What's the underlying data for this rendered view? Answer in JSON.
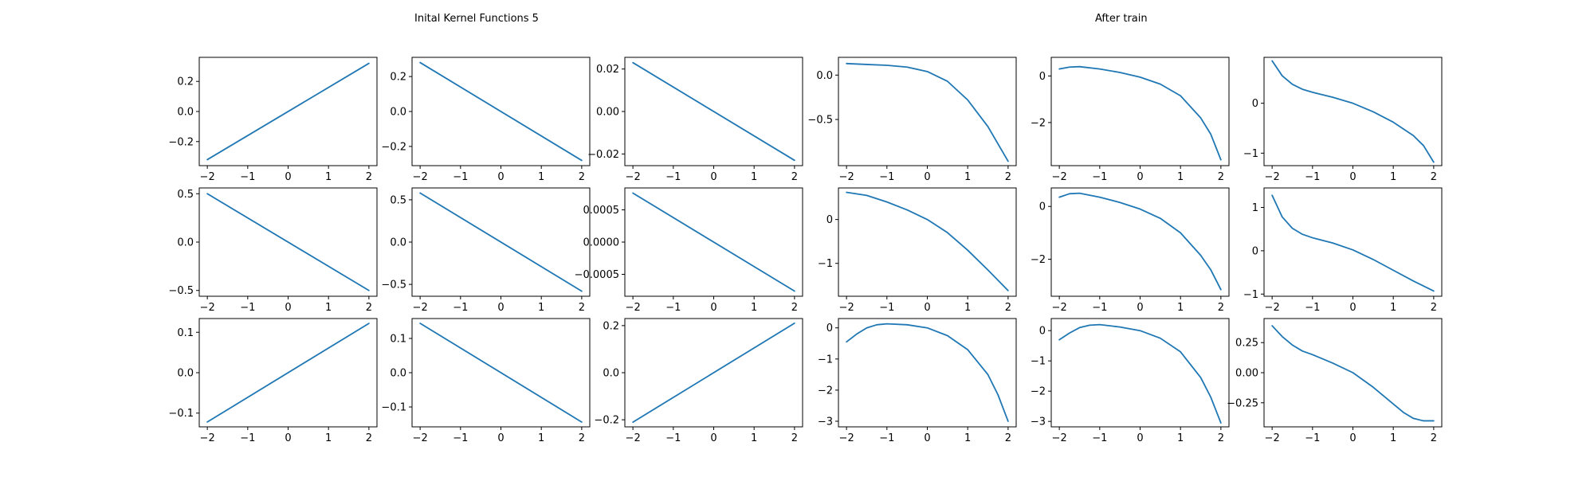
{
  "titles": {
    "left": "Inital Kernel Functions 5",
    "right": "After train"
  },
  "style": {
    "line_color": "#1f77b4",
    "axes_color": "#000000",
    "background": "#ffffff"
  },
  "chart_data": [
    {
      "type": "line",
      "row": 0,
      "col": 0,
      "xlim": [
        -2.2,
        2.2
      ],
      "ylim": [
        -0.36,
        0.36
      ],
      "xticks": [
        -2,
        -1,
        0,
        1,
        2
      ],
      "xtick_labels": [
        "−2",
        "−1",
        "0",
        "1",
        "2"
      ],
      "yticks": [
        -0.2,
        0,
        0.2
      ],
      "ytick_labels": [
        "−0.2",
        "0.0",
        "0.2"
      ],
      "x": [
        -2,
        2
      ],
      "y": [
        -0.32,
        0.32
      ]
    },
    {
      "type": "line",
      "row": 0,
      "col": 1,
      "xlim": [
        -2.2,
        2.2
      ],
      "ylim": [
        -0.31,
        0.31
      ],
      "xticks": [
        -2,
        -1,
        0,
        1,
        2
      ],
      "xtick_labels": [
        "−2",
        "−1",
        "0",
        "1",
        "2"
      ],
      "yticks": [
        -0.2,
        0,
        0.2
      ],
      "ytick_labels": [
        "−0.2",
        "0.0",
        "0.2"
      ],
      "x": [
        -2,
        2
      ],
      "y": [
        0.28,
        -0.28
      ]
    },
    {
      "type": "line",
      "row": 0,
      "col": 2,
      "xlim": [
        -2.2,
        2.2
      ],
      "ylim": [
        -0.0255,
        0.0255
      ],
      "xticks": [
        -2,
        -1,
        0,
        1,
        2
      ],
      "xtick_labels": [
        "−2",
        "−1",
        "0",
        "1",
        "2"
      ],
      "yticks": [
        -0.02,
        0,
        0.02
      ],
      "ytick_labels": [
        "−0.02",
        "0.00",
        "0.02"
      ],
      "x": [
        -2,
        2
      ],
      "y": [
        0.023,
        -0.023
      ]
    },
    {
      "type": "line",
      "row": 0,
      "col": 3,
      "xlim": [
        -2.2,
        2.2
      ],
      "ylim": [
        -1.02,
        0.2
      ],
      "xticks": [
        -2,
        -1,
        0,
        1,
        2
      ],
      "xtick_labels": [
        "−2",
        "−1",
        "0",
        "1",
        "2"
      ],
      "yticks": [
        -0.5,
        0
      ],
      "ytick_labels": [
        "−0.5",
        "0.0"
      ],
      "x": [
        -2,
        -1.5,
        -1,
        -0.5,
        0,
        0.5,
        1,
        1.5,
        2
      ],
      "y": [
        0.13,
        0.12,
        0.11,
        0.09,
        0.04,
        -0.07,
        -0.28,
        -0.58,
        -0.97
      ]
    },
    {
      "type": "line",
      "row": 0,
      "col": 4,
      "xlim": [
        -2.2,
        2.2
      ],
      "ylim": [
        -3.85,
        0.8
      ],
      "xticks": [
        -2,
        -1,
        0,
        1,
        2
      ],
      "xtick_labels": [
        "−2",
        "−1",
        "0",
        "1",
        "2"
      ],
      "yticks": [
        -2,
        0
      ],
      "ytick_labels": [
        "−2",
        "0"
      ],
      "x": [
        -2,
        -1.75,
        -1.5,
        -1,
        -0.5,
        0,
        0.5,
        1,
        1.5,
        1.75,
        2
      ],
      "y": [
        0.3,
        0.38,
        0.4,
        0.3,
        0.15,
        -0.05,
        -0.35,
        -0.85,
        -1.8,
        -2.5,
        -3.6
      ]
    },
    {
      "type": "line",
      "row": 0,
      "col": 5,
      "xlim": [
        -2.2,
        2.2
      ],
      "ylim": [
        -1.25,
        0.92
      ],
      "xticks": [
        -2,
        -1,
        0,
        1,
        2
      ],
      "xtick_labels": [
        "−2",
        "−1",
        "0",
        "1",
        "2"
      ],
      "yticks": [
        -1,
        0
      ],
      "ytick_labels": [
        "−1",
        "0"
      ],
      "x": [
        -2,
        -1.75,
        -1.5,
        -1.25,
        -1,
        -0.5,
        0,
        0.5,
        1,
        1.5,
        1.75,
        2
      ],
      "y": [
        0.85,
        0.55,
        0.38,
        0.28,
        0.22,
        0.12,
        0,
        -0.17,
        -0.38,
        -0.65,
        -0.85,
        -1.18
      ]
    },
    {
      "type": "line",
      "row": 1,
      "col": 0,
      "xlim": [
        -2.2,
        2.2
      ],
      "ylim": [
        -0.56,
        0.56
      ],
      "xticks": [
        -2,
        -1,
        0,
        1,
        2
      ],
      "xtick_labels": [
        "−2",
        "−1",
        "0",
        "1",
        "2"
      ],
      "yticks": [
        -0.5,
        0,
        0.5
      ],
      "ytick_labels": [
        "−0.5",
        "0.0",
        "0.5"
      ],
      "x": [
        -2,
        2
      ],
      "y": [
        0.5,
        -0.5
      ]
    },
    {
      "type": "line",
      "row": 1,
      "col": 1,
      "xlim": [
        -2.2,
        2.2
      ],
      "ylim": [
        -0.64,
        0.64
      ],
      "xticks": [
        -2,
        -1,
        0,
        1,
        2
      ],
      "xtick_labels": [
        "−2",
        "−1",
        "0",
        "1",
        "2"
      ],
      "yticks": [
        -0.5,
        0,
        0.5
      ],
      "ytick_labels": [
        "−0.5",
        "0.0",
        "0.5"
      ],
      "x": [
        -2,
        2
      ],
      "y": [
        0.58,
        -0.58
      ]
    },
    {
      "type": "line",
      "row": 1,
      "col": 2,
      "xlim": [
        -2.2,
        2.2
      ],
      "ylim": [
        -0.00084,
        0.00084
      ],
      "xticks": [
        -2,
        -1,
        0,
        1,
        2
      ],
      "xtick_labels": [
        "−2",
        "−1",
        "0",
        "1",
        "2"
      ],
      "yticks": [
        -0.0005,
        0,
        0.0005
      ],
      "ytick_labels": [
        "−0.0005",
        "0.0000",
        "0.0005"
      ],
      "x": [
        -2,
        2
      ],
      "y": [
        0.00076,
        -0.00076
      ]
    },
    {
      "type": "line",
      "row": 1,
      "col": 3,
      "xlim": [
        -2.2,
        2.2
      ],
      "ylim": [
        -1.75,
        0.72
      ],
      "xticks": [
        -2,
        -1,
        0,
        1,
        2
      ],
      "xtick_labels": [
        "−2",
        "−1",
        "0",
        "1",
        "2"
      ],
      "yticks": [
        -1,
        0
      ],
      "ytick_labels": [
        "−1",
        "0"
      ],
      "x": [
        -2,
        -1.5,
        -1,
        -0.5,
        0,
        0.5,
        1,
        1.5,
        2
      ],
      "y": [
        0.62,
        0.55,
        0.4,
        0.22,
        0,
        -0.3,
        -0.7,
        -1.15,
        -1.62
      ]
    },
    {
      "type": "line",
      "row": 1,
      "col": 4,
      "xlim": [
        -2.2,
        2.2
      ],
      "ylim": [
        -3.4,
        0.7
      ],
      "xticks": [
        -2,
        -1,
        0,
        1,
        2
      ],
      "xtick_labels": [
        "−2",
        "−1",
        "0",
        "1",
        "2"
      ],
      "yticks": [
        -2,
        0
      ],
      "ytick_labels": [
        "−2",
        "0"
      ],
      "x": [
        -2,
        -1.75,
        -1.5,
        -1,
        -0.5,
        0,
        0.5,
        1,
        1.5,
        1.75,
        2
      ],
      "y": [
        0.35,
        0.48,
        0.5,
        0.35,
        0.15,
        -0.1,
        -0.45,
        -1.0,
        -1.85,
        -2.4,
        -3.15
      ]
    },
    {
      "type": "line",
      "row": 1,
      "col": 5,
      "xlim": [
        -2.2,
        2.2
      ],
      "ylim": [
        -1.05,
        1.45
      ],
      "xticks": [
        -2,
        -1,
        0,
        1,
        2
      ],
      "xtick_labels": [
        "−2",
        "−1",
        "0",
        "1",
        "2"
      ],
      "yticks": [
        -1,
        0,
        1
      ],
      "ytick_labels": [
        "−1",
        "0",
        "1"
      ],
      "x": [
        -2,
        -1.75,
        -1.5,
        -1.25,
        -1,
        -0.5,
        0,
        0.5,
        1,
        1.5,
        2
      ],
      "y": [
        1.28,
        0.78,
        0.52,
        0.38,
        0.3,
        0.18,
        0.02,
        -0.2,
        -0.45,
        -0.7,
        -0.93
      ]
    },
    {
      "type": "line",
      "row": 2,
      "col": 0,
      "xlim": [
        -2.2,
        2.2
      ],
      "ylim": [
        -0.134,
        0.134
      ],
      "xticks": [
        -2,
        -1,
        0,
        1,
        2
      ],
      "xtick_labels": [
        "−2",
        "−1",
        "0",
        "1",
        "2"
      ],
      "yticks": [
        -0.1,
        0,
        0.1
      ],
      "ytick_labels": [
        "−0.1",
        "0.0",
        "0.1"
      ],
      "x": [
        -2,
        2
      ],
      "y": [
        -0.122,
        0.122
      ]
    },
    {
      "type": "line",
      "row": 2,
      "col": 1,
      "xlim": [
        -2.2,
        2.2
      ],
      "ylim": [
        -0.158,
        0.158
      ],
      "xticks": [
        -2,
        -1,
        0,
        1,
        2
      ],
      "xtick_labels": [
        "−2",
        "−1",
        "0",
        "1",
        "2"
      ],
      "yticks": [
        -0.1,
        0,
        0.1
      ],
      "ytick_labels": [
        "−0.1",
        "0.0",
        "0.1"
      ],
      "x": [
        -2,
        2
      ],
      "y": [
        0.144,
        -0.144
      ]
    },
    {
      "type": "line",
      "row": 2,
      "col": 2,
      "xlim": [
        -2.2,
        2.2
      ],
      "ylim": [
        -0.23,
        0.23
      ],
      "xticks": [
        -2,
        -1,
        0,
        1,
        2
      ],
      "xtick_labels": [
        "−2",
        "−1",
        "0",
        "1",
        "2"
      ],
      "yticks": [
        -0.2,
        0,
        0.2
      ],
      "ytick_labels": [
        "−0.2",
        "0.0",
        "0.2"
      ],
      "x": [
        -2,
        2
      ],
      "y": [
        -0.21,
        0.21
      ]
    },
    {
      "type": "line",
      "row": 2,
      "col": 3,
      "xlim": [
        -2.2,
        2.2
      ],
      "ylim": [
        -3.18,
        0.3
      ],
      "xticks": [
        -2,
        -1,
        0,
        1,
        2
      ],
      "xtick_labels": [
        "−2",
        "−1",
        "0",
        "1",
        "2"
      ],
      "yticks": [
        -3,
        -2,
        -1,
        0
      ],
      "ytick_labels": [
        "−3",
        "−2",
        "−1",
        "0"
      ],
      "x": [
        -2,
        -1.75,
        -1.5,
        -1.25,
        -1,
        -0.5,
        0,
        0.5,
        1,
        1.5,
        1.75,
        2
      ],
      "y": [
        -0.45,
        -0.2,
        0.0,
        0.1,
        0.13,
        0.1,
        0.0,
        -0.25,
        -0.7,
        -1.5,
        -2.15,
        -3.0
      ]
    },
    {
      "type": "line",
      "row": 2,
      "col": 4,
      "xlim": [
        -2.2,
        2.2
      ],
      "ylim": [
        -3.18,
        0.4
      ],
      "xticks": [
        -2,
        -1,
        0,
        1,
        2
      ],
      "xtick_labels": [
        "−2",
        "−1",
        "0",
        "1",
        "2"
      ],
      "yticks": [
        -3,
        -2,
        -1,
        0
      ],
      "ytick_labels": [
        "−3",
        "−2",
        "−1",
        "0"
      ],
      "x": [
        -2,
        -1.75,
        -1.5,
        -1.25,
        -1,
        -0.5,
        0,
        0.5,
        1,
        1.5,
        1.75,
        2
      ],
      "y": [
        -0.3,
        -0.08,
        0.1,
        0.18,
        0.2,
        0.12,
        0.0,
        -0.25,
        -0.7,
        -1.55,
        -2.2,
        -3.05
      ]
    },
    {
      "type": "line",
      "row": 2,
      "col": 5,
      "xlim": [
        -2.2,
        2.2
      ],
      "ylim": [
        -0.45,
        0.45
      ],
      "xticks": [
        -2,
        -1,
        0,
        1,
        2
      ],
      "xtick_labels": [
        "−2",
        "−1",
        "0",
        "1",
        "2"
      ],
      "yticks": [
        -0.25,
        0,
        0.25
      ],
      "ytick_labels": [
        "−0.25",
        "0.00",
        "0.25"
      ],
      "x": [
        -2,
        -1.75,
        -1.5,
        -1.25,
        -1,
        -0.5,
        0,
        0.5,
        1,
        1.25,
        1.5,
        1.75,
        2
      ],
      "y": [
        0.39,
        0.3,
        0.23,
        0.18,
        0.15,
        0.08,
        0.0,
        -0.12,
        -0.26,
        -0.33,
        -0.38,
        -0.4,
        -0.4
      ]
    }
  ]
}
